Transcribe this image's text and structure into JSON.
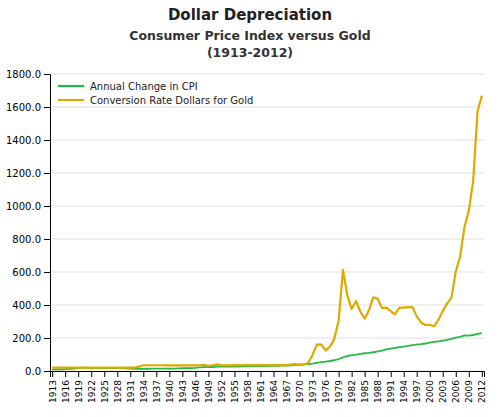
{
  "chart_data": {
    "type": "line",
    "title": "Dollar Depreciation",
    "subtitle": [
      "Consumer Price Index versus Gold",
      "(1913-2012)"
    ],
    "x": [
      1913,
      1914,
      1915,
      1916,
      1917,
      1918,
      1919,
      1920,
      1921,
      1922,
      1923,
      1924,
      1925,
      1926,
      1927,
      1928,
      1929,
      1930,
      1931,
      1932,
      1933,
      1934,
      1935,
      1936,
      1937,
      1938,
      1939,
      1940,
      1941,
      1942,
      1943,
      1944,
      1945,
      1946,
      1947,
      1948,
      1949,
      1950,
      1951,
      1952,
      1953,
      1954,
      1955,
      1956,
      1957,
      1958,
      1959,
      1960,
      1961,
      1962,
      1963,
      1964,
      1965,
      1966,
      1967,
      1968,
      1969,
      1970,
      1971,
      1972,
      1973,
      1974,
      1975,
      1976,
      1977,
      1978,
      1979,
      1980,
      1981,
      1982,
      1983,
      1984,
      1985,
      1986,
      1987,
      1988,
      1989,
      1990,
      1991,
      1992,
      1993,
      1994,
      1995,
      1996,
      1997,
      1998,
      1999,
      2000,
      2001,
      2002,
      2003,
      2004,
      2005,
      2006,
      2007,
      2008,
      2009,
      2010,
      2011,
      2012
    ],
    "series": [
      {
        "name": "Annual Change in CPI",
        "color": "#22bb44",
        "values": [
          9.9,
          10.0,
          10.1,
          10.9,
          12.8,
          15.1,
          17.3,
          20.0,
          17.9,
          16.8,
          17.1,
          17.1,
          17.5,
          17.7,
          17.4,
          17.1,
          17.1,
          16.7,
          15.2,
          13.7,
          13.0,
          13.4,
          13.7,
          13.9,
          14.4,
          14.1,
          13.9,
          14.0,
          14.7,
          16.3,
          17.3,
          17.6,
          18.0,
          19.5,
          22.3,
          24.1,
          23.8,
          24.1,
          26.0,
          26.5,
          26.7,
          26.9,
          26.8,
          27.2,
          28.1,
          28.9,
          29.1,
          29.6,
          29.9,
          30.2,
          30.6,
          31.0,
          31.5,
          32.4,
          33.4,
          34.8,
          36.7,
          38.8,
          40.5,
          41.8,
          44.4,
          49.3,
          53.8,
          56.9,
          60.6,
          65.2,
          72.6,
          82.4,
          90.9,
          96.5,
          99.6,
          103.9,
          107.6,
          109.6,
          113.6,
          118.3,
          124.0,
          130.7,
          136.2,
          140.3,
          144.5,
          148.2,
          152.4,
          156.9,
          160.5,
          163.0,
          166.6,
          172.2,
          177.1,
          179.9,
          184.0,
          188.9,
          195.3,
          201.6,
          207.3,
          215.3,
          214.5,
          218.1,
          224.9,
          229.6
        ]
      },
      {
        "name": "Conversion Rate Dollars for Gold",
        "color": "#ddaa00",
        "values": [
          20.67,
          20.67,
          20.67,
          20.67,
          20.67,
          20.67,
          20.67,
          20.67,
          20.67,
          20.67,
          20.67,
          20.67,
          20.67,
          20.67,
          20.67,
          20.67,
          20.67,
          20.67,
          20.67,
          20.67,
          26.33,
          34.69,
          34.84,
          34.87,
          34.79,
          34.85,
          34.42,
          33.85,
          33.85,
          33.85,
          33.85,
          33.85,
          33.85,
          33.85,
          34.71,
          37.22,
          31.69,
          34.72,
          40.25,
          34.6,
          35.0,
          34.6,
          35.03,
          35.1,
          34.95,
          35.1,
          35.1,
          35.27,
          35.25,
          35.23,
          35.09,
          35.1,
          35.12,
          35.13,
          35.13,
          39.31,
          41.28,
          36.02,
          40.62,
          48.57,
          97.32,
          159.26,
          161.02,
          124.74,
          147.71,
          193.4,
          306.68,
          612.56,
          460.03,
          376.18,
          424.35,
          360.48,
          317.26,
          368.05,
          447.37,
          437.0,
          381.44,
          383.51,
          362.11,
          343.82,
          384.53,
          384.0,
          387.0,
          387.77,
          331.02,
          294.24,
          278.98,
          279.11,
          271.04,
          309.73,
          363.38,
          409.72,
          444.74,
          603.46,
          695.39,
          871.96,
          972.35,
          1151.18,
          1571.52,
          1668.98
        ]
      }
    ],
    "xlim": [
      1912.5,
      2012.5
    ],
    "xticks": [
      1913,
      1916,
      1919,
      1922,
      1925,
      1928,
      1931,
      1934,
      1937,
      1940,
      1943,
      1946,
      1949,
      1952,
      1955,
      1958,
      1961,
      1964,
      1967,
      1970,
      1973,
      1976,
      1979,
      1982,
      1985,
      1988,
      1991,
      1994,
      1997,
      2000,
      2003,
      2006,
      2009,
      2012
    ],
    "ylim": [
      0,
      1800
    ],
    "yticks": [
      {
        "value": 0,
        "label": "0.0"
      },
      {
        "value": 200,
        "label": "200.0"
      },
      {
        "value": 400,
        "label": "400.0"
      },
      {
        "value": 600,
        "label": "600.0"
      },
      {
        "value": 800,
        "label": "800.0"
      },
      {
        "value": 1000,
        "label": "1000.0"
      },
      {
        "value": 1200,
        "label": "1200.0"
      },
      {
        "value": 1400,
        "label": "1400.0"
      },
      {
        "value": 1600,
        "label": "1600.0"
      },
      {
        "value": 1800,
        "label": "1800.0"
      }
    ],
    "grid": true,
    "legend": "upper left"
  }
}
